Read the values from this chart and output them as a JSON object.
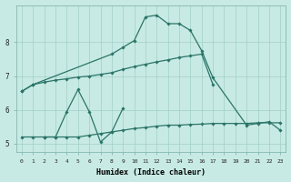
{
  "xlabel": "Humidex (Indice chaleur)",
  "background_color": "#c8eae4",
  "line_color": "#2a7568",
  "grid_color": "#a0cfc8",
  "xlim": [
    -0.5,
    23.5
  ],
  "ylim": [
    4.75,
    9.1
  ],
  "yticks": [
    5,
    6,
    7,
    8
  ],
  "xticks": [
    0,
    1,
    2,
    3,
    4,
    5,
    6,
    7,
    8,
    9,
    10,
    11,
    12,
    13,
    14,
    15,
    16,
    17,
    18,
    19,
    20,
    21,
    22,
    23
  ],
  "series": [
    {
      "x": [
        0,
        1,
        8,
        9,
        10,
        11,
        12,
        13,
        14,
        15,
        16,
        17,
        20,
        21,
        22,
        23
      ],
      "y": [
        6.55,
        6.75,
        7.65,
        7.85,
        8.05,
        8.75,
        8.8,
        8.55,
        8.55,
        8.35,
        7.75,
        6.95,
        5.55,
        5.6,
        5.65,
        5.4
      ]
    },
    {
      "x": [
        2,
        3,
        4,
        5,
        6,
        7,
        8,
        9
      ],
      "y": [
        5.2,
        5.2,
        5.95,
        6.6,
        5.95,
        5.05,
        5.35,
        6.05
      ]
    },
    {
      "x": [
        0,
        1,
        2,
        3,
        4,
        5,
        6,
        7,
        8,
        9,
        10,
        11,
        12,
        13,
        14,
        15,
        16,
        17,
        18,
        19,
        20,
        21,
        22,
        23
      ],
      "y": [
        5.2,
        5.2,
        5.2,
        5.2,
        5.2,
        5.2,
        5.25,
        5.3,
        5.35,
        5.4,
        5.45,
        5.48,
        5.52,
        5.55,
        5.55,
        5.57,
        5.58,
        5.6,
        5.6,
        5.6,
        5.6,
        5.62,
        5.62,
        5.62
      ]
    },
    {
      "x": [
        0,
        1,
        2,
        3,
        4,
        5,
        6,
        7,
        8,
        9,
        10,
        11,
        12,
        13,
        14,
        15,
        16,
        17
      ],
      "y": [
        6.55,
        6.75,
        6.82,
        6.88,
        6.92,
        6.97,
        7.0,
        7.05,
        7.1,
        7.2,
        7.28,
        7.35,
        7.42,
        7.48,
        7.55,
        7.6,
        7.65,
        6.75
      ]
    }
  ]
}
